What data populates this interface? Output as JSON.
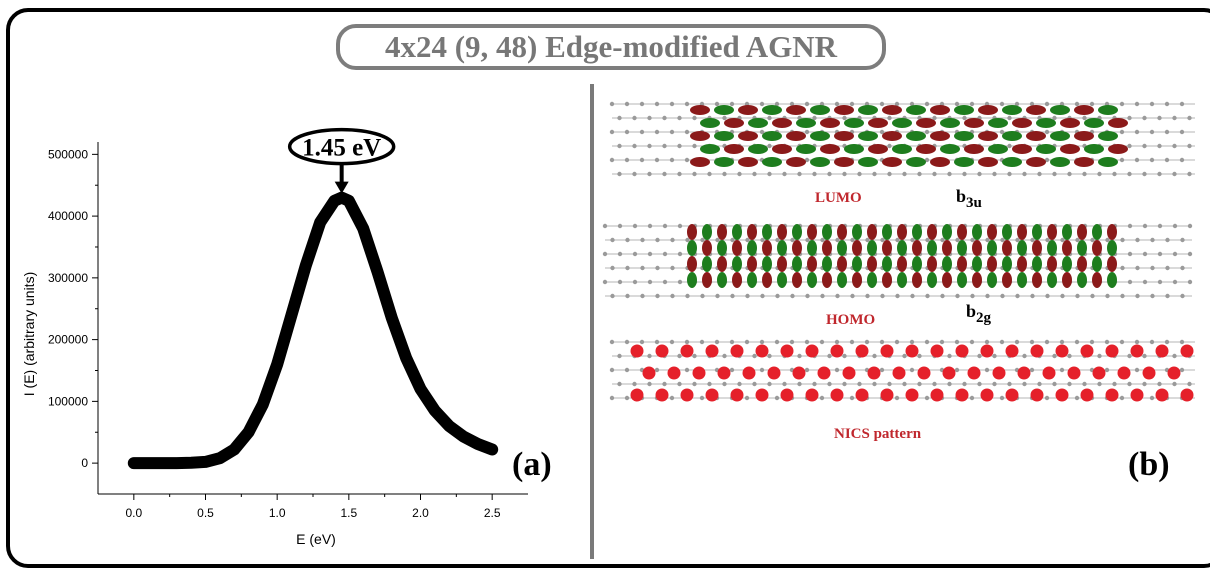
{
  "title": "4x24 (9, 48) Edge-modified AGNR",
  "chart_data": {
    "type": "line",
    "xlabel": "E  (eV)",
    "ylabel": "I (E)  (arbitrary units)",
    "xlim": [
      -0.25,
      2.75
    ],
    "ylim": [
      -50000,
      520000
    ],
    "x_ticks": [
      "0.0",
      "0.5",
      "1.0",
      "1.5",
      "2.0",
      "2.5"
    ],
    "y_ticks": [
      "0",
      "100000",
      "200000",
      "300000",
      "400000",
      "500000"
    ],
    "peak": {
      "x": 1.45,
      "y": 430000
    },
    "annotation": "1.45 eV",
    "panel_label": "(a)",
    "series": [
      {
        "x": [
          0.0,
          0.1,
          0.2,
          0.3,
          0.4,
          0.5,
          0.6,
          0.7,
          0.8,
          0.9,
          1.0,
          1.1,
          1.2,
          1.3,
          1.4,
          1.45,
          1.5,
          1.6,
          1.7,
          1.8,
          1.9,
          2.0,
          2.1,
          2.2,
          2.3,
          2.4,
          2.5
        ],
        "values": [
          0,
          0,
          0,
          0,
          500,
          2000,
          8000,
          22000,
          50000,
          95000,
          160000,
          240000,
          320000,
          390000,
          425000,
          430000,
          425000,
          380000,
          310000,
          235000,
          170000,
          120000,
          85000,
          60000,
          43000,
          31000,
          22000
        ]
      }
    ]
  },
  "panel_b": {
    "lumo_label": "LUMO",
    "lumo_sym": "b",
    "lumo_sub": "3u",
    "homo_label": "HOMO",
    "homo_sym": "b",
    "homo_sub": "2g",
    "nics_label": "NICS  pattern",
    "panel_label": "(b)",
    "colors": {
      "red_lobe": "#8b1a1a",
      "green_lobe": "#1e7d1e",
      "nics_red": "#e5202a",
      "atom_gray": "#9a9a9a"
    }
  }
}
